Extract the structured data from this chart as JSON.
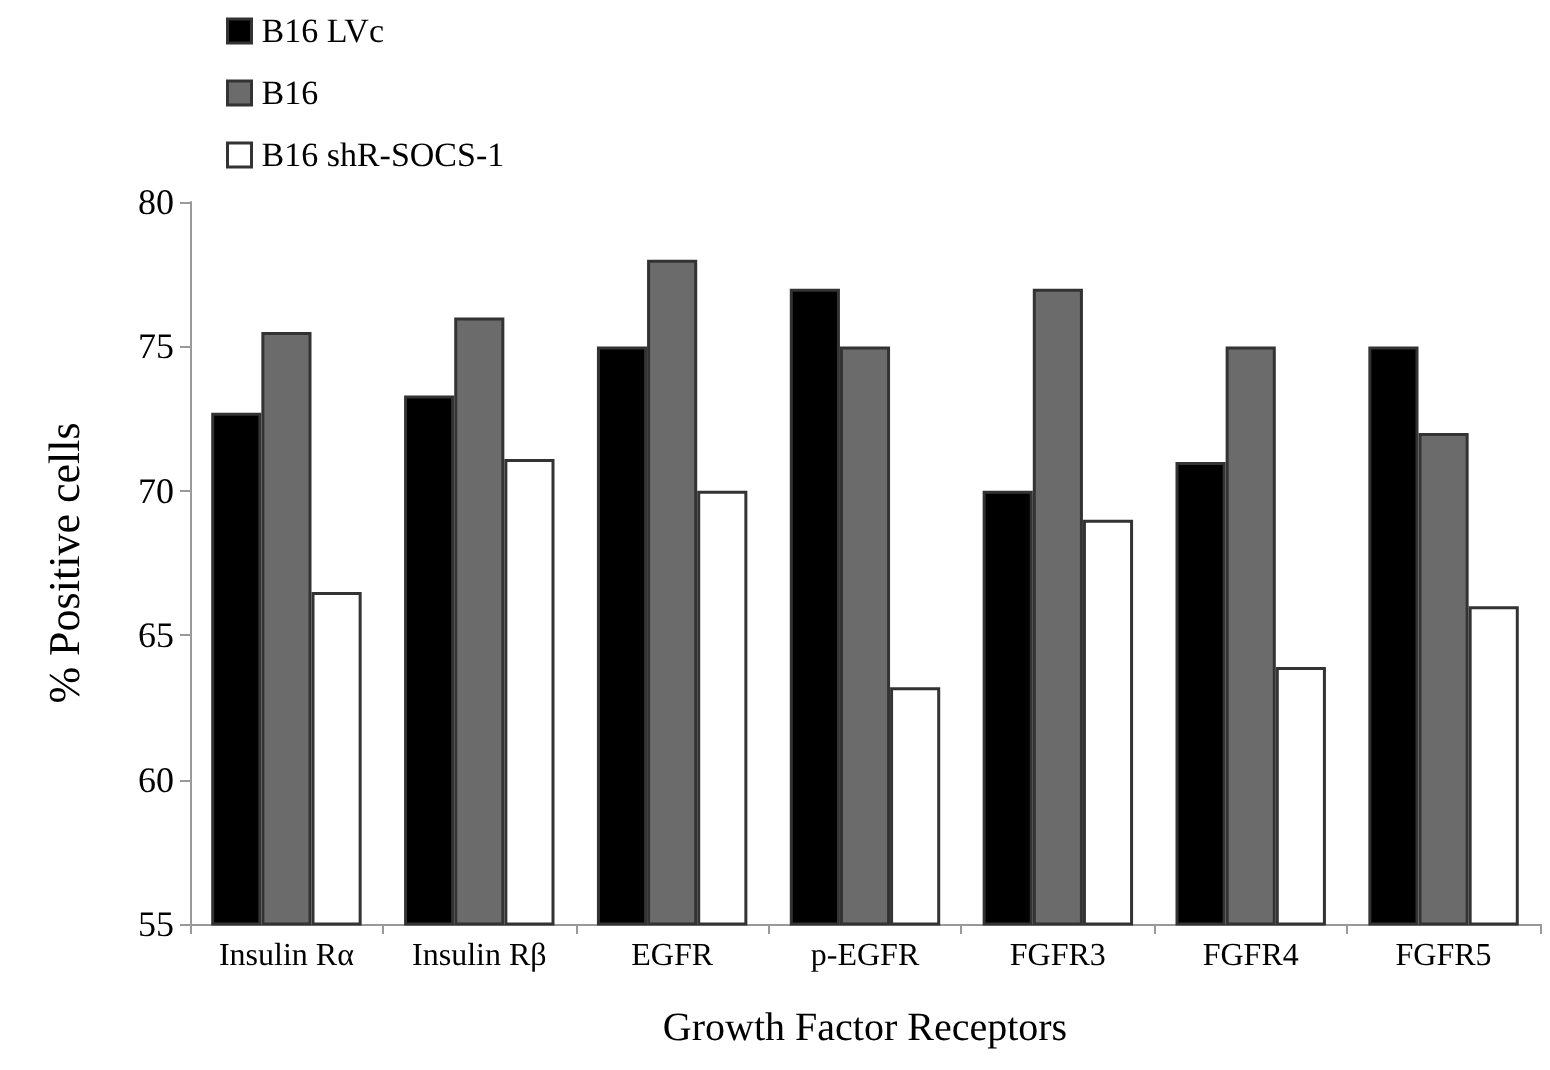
{
  "chart_data": {
    "type": "bar",
    "xlabel": "Growth Factor Receptors",
    "ylabel": "% Positive cells",
    "categories": [
      "Insulin Rα",
      "Insulin Rβ",
      "EGFR",
      "p-EGFR",
      "FGFR3",
      "FGFR4",
      "FGFR5"
    ],
    "series": [
      {
        "name": "B16 LVc",
        "color": "#000000",
        "values": [
          72.7,
          73.3,
          75,
          77,
          70,
          71,
          75
        ]
      },
      {
        "name": "B16",
        "color": "#6b6b6b",
        "values": [
          75.5,
          76,
          78,
          75,
          77,
          75,
          72
        ]
      },
      {
        "name": "B16 shR-SOCS-1",
        "color": "#ffffff",
        "values": [
          66.5,
          71.1,
          70,
          63.2,
          69,
          63.9,
          66
        ]
      }
    ],
    "ylim": [
      55,
      80
    ],
    "yticks": [
      55,
      60,
      65,
      70,
      75,
      80
    ],
    "grid": false,
    "legend": "top left"
  }
}
